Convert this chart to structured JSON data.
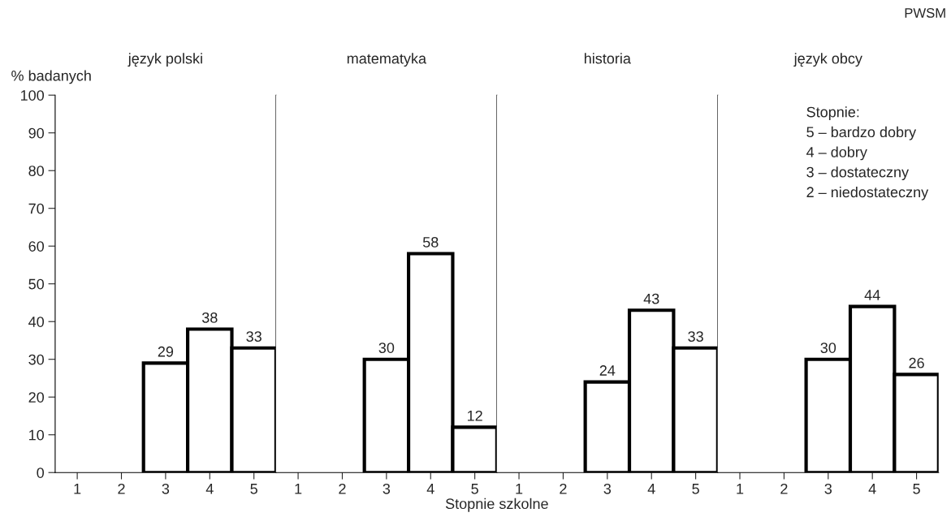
{
  "chart_data": [
    {
      "type": "bar",
      "title": "język polski",
      "ylabel": "% badanych",
      "categories": [
        "1",
        "2",
        "3",
        "4",
        "5"
      ],
      "values": [
        null,
        null,
        29,
        38,
        33
      ],
      "color": "#000000",
      "ylim": [
        0,
        100
      ],
      "yticks": [
        0,
        10,
        20,
        30,
        40,
        50,
        60,
        70,
        80,
        90,
        100
      ],
      "data_labels": true,
      "grid": false,
      "legend": false
    },
    {
      "type": "bar",
      "title": "matematyka",
      "xlabel": "Stopnie szkolne",
      "categories": [
        "1",
        "2",
        "3",
        "4",
        "5"
      ],
      "values": [
        null,
        null,
        30,
        58,
        12
      ],
      "color": "#000000",
      "ylim": [
        0,
        100
      ],
      "tick_labels": "x",
      "data_labels": true,
      "grid": false,
      "legend": false
    },
    {
      "type": "bar",
      "title": "historia",
      "categories": [
        "1",
        "2",
        "3",
        "4",
        "5"
      ],
      "values": [
        null,
        null,
        24,
        43,
        33
      ],
      "color": "#000000",
      "ylim": [
        0,
        100
      ],
      "tick_labels": "x",
      "data_labels": true,
      "grid": false,
      "legend": false
    },
    {
      "type": "bar",
      "title": "język obcy",
      "categories": [
        "1",
        "2",
        "3",
        "4",
        "5"
      ],
      "values": [
        null,
        null,
        30,
        44,
        26
      ],
      "color": "#000000",
      "ylim": [
        0,
        100
      ],
      "tick_labels": "x",
      "data_labels": true,
      "grid": false,
      "legend": false,
      "annotations": [
        "Stopnie:\n5 – bardzo dobry\n4 – dobry\n3 – dostateczny\n2 – niedostateczny",
        "PWSM"
      ]
    }
  ]
}
